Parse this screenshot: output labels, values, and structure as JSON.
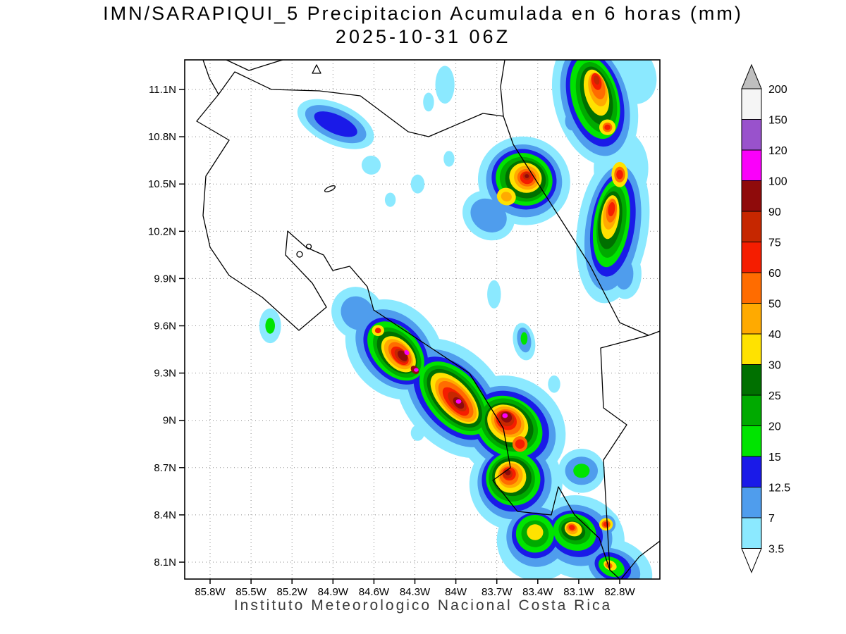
{
  "header": {
    "title": "IMN/SARAPIQUI_5 Precipitacion Acumulada en 6 horas (mm)",
    "subtitle": "2025-10-31 06Z"
  },
  "footer": {
    "credit": "Instituto Meteorologico Nacional Costa Rica"
  },
  "axes": {
    "x_ticks": [
      {
        "label": "85.8W",
        "lon": -85.8
      },
      {
        "label": "85.5W",
        "lon": -85.5
      },
      {
        "label": "85.2W",
        "lon": -85.2
      },
      {
        "label": "84.9W",
        "lon": -84.9
      },
      {
        "label": "84.6W",
        "lon": -84.6
      },
      {
        "label": "84.3W",
        "lon": -84.3
      },
      {
        "label": "84W",
        "lon": -84.0
      },
      {
        "label": "83.7W",
        "lon": -83.7
      },
      {
        "label": "83.4W",
        "lon": -83.4
      },
      {
        "label": "83.1W",
        "lon": -83.1
      },
      {
        "label": "82.8W",
        "lon": -82.8
      }
    ],
    "y_ticks": [
      {
        "label": "11.1N",
        "lat": 11.1
      },
      {
        "label": "10.8N",
        "lat": 10.8
      },
      {
        "label": "10.5N",
        "lat": 10.5
      },
      {
        "label": "10.2N",
        "lat": 10.2
      },
      {
        "label": "9.9N",
        "lat": 9.9
      },
      {
        "label": "9.6N",
        "lat": 9.6
      },
      {
        "label": "9.3N",
        "lat": 9.3
      },
      {
        "label": "9N",
        "lat": 9.0
      },
      {
        "label": "8.7N",
        "lat": 8.7
      },
      {
        "label": "8.4N",
        "lat": 8.4
      },
      {
        "label": "8.1N",
        "lat": 8.1
      }
    ]
  },
  "legend": {
    "labels_top_to_bottom": [
      "200",
      "150",
      "120",
      "100",
      "90",
      "75",
      "60",
      "50",
      "40",
      "30",
      "25",
      "20",
      "15",
      "12.5",
      "7",
      "3.5"
    ],
    "arrow_top_color": "#bfbfbf",
    "arrow_bottom_color": "#ffffff"
  },
  "chart_data": {
    "type": "heatmap",
    "title": "IMN/SARAPIQUI_5 Precipitacion Acumulada en 6 horas (mm)",
    "subtitle": "2025-10-31 06Z",
    "units": "mm",
    "lon_range": [
      -85.8,
      -82.8
    ],
    "lat_range": [
      8.1,
      11.1
    ],
    "grid": true,
    "legend_position": "right",
    "thresholds_mm": [
      3.5,
      7,
      12.5,
      15,
      20,
      25,
      30,
      40,
      50,
      60,
      75,
      90,
      100,
      120,
      150,
      200
    ],
    "palette": [
      {
        "mm": 3.5,
        "color": "#8be9ff"
      },
      {
        "mm": 7,
        "color": "#4f9ded"
      },
      {
        "mm": 12.5,
        "color": "#1a1ae8"
      },
      {
        "mm": 15,
        "color": "#00e400"
      },
      {
        "mm": 20,
        "color": "#00aa00"
      },
      {
        "mm": 25,
        "color": "#007000"
      },
      {
        "mm": 30,
        "color": "#ffe200"
      },
      {
        "mm": 40,
        "color": "#ffaa00"
      },
      {
        "mm": 50,
        "color": "#ff6c00"
      },
      {
        "mm": 60,
        "color": "#f51d00"
      },
      {
        "mm": 75,
        "color": "#c62700"
      },
      {
        "mm": 90,
        "color": "#8f0b0b"
      },
      {
        "mm": 100,
        "color": "#fa00fa"
      },
      {
        "mm": 120,
        "color": "#9952cc"
      },
      {
        "mm": 150,
        "color": "#f5f5f5"
      }
    ],
    "feature_format": [
      "lon",
      "lat",
      "rx_deg",
      "ry_deg",
      "rotation_deg",
      "palette_index"
    ],
    "features": [
      [
        -84.45,
        9.45,
        0.4,
        0.28,
        48,
        0
      ],
      [
        -84.02,
        9.14,
        0.5,
        0.3,
        48,
        0
      ],
      [
        -83.6,
        8.95,
        0.42,
        0.32,
        35,
        0
      ],
      [
        -83.56,
        8.6,
        0.34,
        0.3,
        25,
        0
      ],
      [
        -83.4,
        8.24,
        0.3,
        0.26,
        15,
        0
      ],
      [
        -84.72,
        9.68,
        0.2,
        0.16,
        48,
        0
      ],
      [
        -85.36,
        9.6,
        0.08,
        0.11,
        0,
        0
      ],
      [
        -84.76,
        9.62,
        0.05,
        0.06,
        0,
        0
      ],
      [
        -83.5,
        9.5,
        0.08,
        0.12,
        -10,
        0
      ],
      [
        -83.72,
        9.8,
        0.05,
        0.09,
        0,
        0
      ],
      [
        -83.28,
        9.23,
        0.045,
        0.055,
        0,
        0
      ],
      [
        -83.5,
        10.52,
        0.34,
        0.28,
        20,
        0
      ],
      [
        -83.76,
        10.3,
        0.2,
        0.15,
        35,
        0
      ],
      [
        -82.98,
        11.03,
        0.3,
        0.42,
        -15,
        0
      ],
      [
        -82.72,
        11.2,
        0.18,
        0.2,
        -25,
        0
      ],
      [
        -83.15,
        10.9,
        0.08,
        0.1,
        0,
        0
      ],
      [
        -82.85,
        10.22,
        0.26,
        0.48,
        8,
        0
      ],
      [
        -82.79,
        10.6,
        0.2,
        0.24,
        0,
        0
      ],
      [
        -82.76,
        9.93,
        0.12,
        0.16,
        0,
        0
      ],
      [
        -84.88,
        10.88,
        0.3,
        0.13,
        24,
        0
      ],
      [
        -84.62,
        10.62,
        0.07,
        0.06,
        24,
        0
      ],
      [
        -84.08,
        11.13,
        0.07,
        0.12,
        0,
        0
      ],
      [
        -84.2,
        11.02,
        0.04,
        0.06,
        0,
        0
      ],
      [
        -84.05,
        10.66,
        0.04,
        0.05,
        0,
        0
      ],
      [
        -84.28,
        10.5,
        0.05,
        0.06,
        0,
        0
      ],
      [
        -84.48,
        10.4,
        0.04,
        0.045,
        0,
        0
      ],
      [
        -83.1,
        8.26,
        0.34,
        0.26,
        20,
        0
      ],
      [
        -82.83,
        8.06,
        0.28,
        0.18,
        25,
        0
      ],
      [
        -83.08,
        8.68,
        0.17,
        0.14,
        0,
        0
      ],
      [
        -84.28,
        8.92,
        0.05,
        0.05,
        0,
        0
      ],
      [
        -82.9,
        8.34,
        0.1,
        0.09,
        0,
        0
      ],
      [
        -84.45,
        9.45,
        0.33,
        0.21,
        48,
        1
      ],
      [
        -84.02,
        9.14,
        0.42,
        0.23,
        48,
        1
      ],
      [
        -83.6,
        8.95,
        0.35,
        0.25,
        35,
        1
      ],
      [
        -83.57,
        8.61,
        0.27,
        0.24,
        25,
        1
      ],
      [
        -83.41,
        8.26,
        0.22,
        0.19,
        15,
        1
      ],
      [
        -84.72,
        9.68,
        0.13,
        0.1,
        48,
        1
      ],
      [
        -83.5,
        10.52,
        0.28,
        0.23,
        20,
        1
      ],
      [
        -83.76,
        10.3,
        0.14,
        0.1,
        35,
        1
      ],
      [
        -82.98,
        11.03,
        0.24,
        0.36,
        -15,
        1
      ],
      [
        -82.85,
        10.22,
        0.2,
        0.4,
        8,
        1
      ],
      [
        -84.88,
        10.88,
        0.24,
        0.095,
        24,
        1
      ],
      [
        -83.11,
        8.27,
        0.26,
        0.19,
        20,
        1
      ],
      [
        -82.84,
        8.06,
        0.2,
        0.12,
        25,
        1
      ],
      [
        -83.08,
        8.68,
        0.12,
        0.09,
        0,
        1
      ],
      [
        -82.77,
        9.93,
        0.07,
        0.1,
        0,
        1
      ],
      [
        -83.5,
        9.51,
        0.05,
        0.08,
        -10,
        1
      ],
      [
        -82.9,
        8.34,
        0.07,
        0.06,
        0,
        1
      ],
      [
        -83.15,
        10.9,
        0.05,
        0.06,
        0,
        1
      ],
      [
        -84.44,
        9.44,
        0.28,
        0.17,
        48,
        2
      ],
      [
        -84.02,
        9.14,
        0.36,
        0.19,
        48,
        2
      ],
      [
        -83.6,
        8.96,
        0.3,
        0.21,
        35,
        2
      ],
      [
        -83.58,
        8.62,
        0.23,
        0.2,
        25,
        2
      ],
      [
        -83.42,
        8.27,
        0.17,
        0.145,
        15,
        2
      ],
      [
        -83.5,
        10.53,
        0.24,
        0.19,
        20,
        2
      ],
      [
        -82.98,
        11.04,
        0.2,
        0.31,
        -15,
        2
      ],
      [
        -82.85,
        10.24,
        0.16,
        0.33,
        8,
        2
      ],
      [
        -84.88,
        10.88,
        0.17,
        0.06,
        24,
        2
      ],
      [
        -83.12,
        8.28,
        0.2,
        0.145,
        20,
        2
      ],
      [
        -82.85,
        8.07,
        0.14,
        0.085,
        25,
        2
      ],
      [
        -84.44,
        9.44,
        0.25,
        0.145,
        48,
        3
      ],
      [
        -84.01,
        9.14,
        0.32,
        0.165,
        48,
        3
      ],
      [
        -83.61,
        8.96,
        0.26,
        0.18,
        35,
        3
      ],
      [
        -83.58,
        8.63,
        0.2,
        0.17,
        25,
        3
      ],
      [
        -83.42,
        8.28,
        0.14,
        0.12,
        15,
        3
      ],
      [
        -83.5,
        10.53,
        0.21,
        0.165,
        20,
        3
      ],
      [
        -82.98,
        11.05,
        0.17,
        0.27,
        -15,
        3
      ],
      [
        -82.86,
        10.25,
        0.13,
        0.28,
        8,
        3
      ],
      [
        -83.13,
        8.29,
        0.16,
        0.115,
        20,
        3
      ],
      [
        -82.86,
        8.07,
        0.1,
        0.06,
        25,
        3
      ],
      [
        -85.36,
        9.6,
        0.035,
        0.05,
        0,
        3
      ],
      [
        -83.5,
        9.52,
        0.025,
        0.04,
        0,
        3
      ],
      [
        -83.08,
        8.68,
        0.06,
        0.045,
        0,
        3
      ],
      [
        -84.43,
        9.43,
        0.215,
        0.12,
        48,
        4
      ],
      [
        -84.01,
        9.14,
        0.29,
        0.14,
        48,
        4
      ],
      [
        -83.61,
        8.97,
        0.225,
        0.155,
        35,
        4
      ],
      [
        -83.59,
        8.63,
        0.17,
        0.145,
        25,
        4
      ],
      [
        -83.42,
        8.28,
        0.1,
        0.085,
        15,
        4
      ],
      [
        -83.5,
        10.53,
        0.18,
        0.14,
        20,
        4
      ],
      [
        -82.97,
        11.05,
        0.14,
        0.23,
        -15,
        4
      ],
      [
        -82.86,
        10.26,
        0.105,
        0.23,
        8,
        4
      ],
      [
        -83.13,
        8.3,
        0.12,
        0.085,
        20,
        4
      ],
      [
        -84.43,
        9.43,
        0.18,
        0.1,
        48,
        5
      ],
      [
        -84.01,
        9.14,
        0.26,
        0.12,
        48,
        5
      ],
      [
        -83.61,
        8.97,
        0.19,
        0.13,
        35,
        5
      ],
      [
        -83.59,
        8.64,
        0.145,
        0.12,
        25,
        5
      ],
      [
        -83.49,
        10.53,
        0.15,
        0.12,
        20,
        5
      ],
      [
        -82.97,
        11.06,
        0.11,
        0.19,
        -15,
        5
      ],
      [
        -82.87,
        10.27,
        0.085,
        0.185,
        8,
        5
      ],
      [
        -83.14,
        8.3,
        0.09,
        0.06,
        20,
        5
      ],
      [
        -84.42,
        9.42,
        0.155,
        0.085,
        48,
        6
      ],
      [
        -84.01,
        9.14,
        0.23,
        0.1,
        48,
        6
      ],
      [
        -83.62,
        8.98,
        0.16,
        0.11,
        35,
        6
      ],
      [
        -83.6,
        8.64,
        0.115,
        0.1,
        25,
        6
      ],
      [
        -83.42,
        8.29,
        0.06,
        0.05,
        15,
        6
      ],
      [
        -83.49,
        10.54,
        0.12,
        0.095,
        20,
        6
      ],
      [
        -83.63,
        10.42,
        0.07,
        0.055,
        20,
        6
      ],
      [
        -82.97,
        11.08,
        0.085,
        0.15,
        -15,
        6
      ],
      [
        -82.89,
        10.86,
        0.06,
        0.05,
        0,
        6
      ],
      [
        -82.87,
        10.29,
        0.065,
        0.14,
        8,
        6
      ],
      [
        -83.14,
        8.31,
        0.065,
        0.045,
        20,
        6
      ],
      [
        -82.87,
        8.08,
        0.05,
        0.03,
        25,
        6
      ],
      [
        -84.57,
        9.57,
        0.045,
        0.035,
        0,
        6
      ],
      [
        -82.8,
        10.56,
        0.06,
        0.08,
        0,
        6
      ],
      [
        -82.9,
        8.34,
        0.05,
        0.04,
        0,
        6
      ],
      [
        -84.42,
        9.42,
        0.13,
        0.07,
        48,
        7
      ],
      [
        -84.0,
        9.13,
        0.2,
        0.085,
        48,
        7
      ],
      [
        -83.62,
        8.99,
        0.13,
        0.09,
        35,
        7
      ],
      [
        -83.6,
        8.65,
        0.09,
        0.08,
        25,
        7
      ],
      [
        -83.48,
        10.54,
        0.095,
        0.075,
        20,
        7
      ],
      [
        -83.63,
        10.42,
        0.04,
        0.03,
        20,
        7
      ],
      [
        -82.96,
        11.1,
        0.065,
        0.11,
        -15,
        7
      ],
      [
        -82.87,
        10.31,
        0.05,
        0.1,
        8,
        7
      ],
      [
        -83.15,
        8.31,
        0.045,
        0.032,
        20,
        7
      ],
      [
        -84.41,
        9.42,
        0.105,
        0.055,
        48,
        8
      ],
      [
        -84.0,
        9.13,
        0.17,
        0.07,
        48,
        8
      ],
      [
        -83.62,
        8.99,
        0.105,
        0.075,
        35,
        8
      ],
      [
        -83.61,
        8.65,
        0.07,
        0.06,
        25,
        8
      ],
      [
        -83.53,
        8.85,
        0.055,
        0.05,
        0,
        8
      ],
      [
        -83.48,
        10.54,
        0.07,
        0.055,
        20,
        8
      ],
      [
        -82.96,
        11.12,
        0.05,
        0.085,
        -15,
        8
      ],
      [
        -82.89,
        10.86,
        0.035,
        0.03,
        0,
        8
      ],
      [
        -82.86,
        10.33,
        0.038,
        0.075,
        8,
        8
      ],
      [
        -82.8,
        10.56,
        0.04,
        0.05,
        0,
        8
      ],
      [
        -82.9,
        8.34,
        0.032,
        0.026,
        0,
        8
      ],
      [
        -83.15,
        8.32,
        0.035,
        0.025,
        20,
        8
      ],
      [
        -82.88,
        8.08,
        0.028,
        0.018,
        25,
        8
      ],
      [
        -84.41,
        9.41,
        0.08,
        0.042,
        48,
        9
      ],
      [
        -84.0,
        9.12,
        0.13,
        0.05,
        48,
        9
      ],
      [
        -83.63,
        9.0,
        0.08,
        0.058,
        35,
        9
      ],
      [
        -83.61,
        8.66,
        0.05,
        0.042,
        25,
        9
      ],
      [
        -83.53,
        8.85,
        0.035,
        0.03,
        0,
        9
      ],
      [
        -83.48,
        10.54,
        0.05,
        0.04,
        20,
        9
      ],
      [
        -82.97,
        11.15,
        0.035,
        0.055,
        -15,
        9
      ],
      [
        -82.89,
        10.86,
        0.022,
        0.018,
        0,
        9
      ],
      [
        -82.86,
        10.34,
        0.025,
        0.045,
        8,
        9
      ],
      [
        -82.8,
        10.56,
        0.025,
        0.03,
        0,
        9
      ],
      [
        -84.57,
        9.57,
        0.022,
        0.018,
        0,
        9
      ],
      [
        -83.15,
        8.32,
        0.022,
        0.016,
        20,
        9
      ],
      [
        -82.9,
        8.34,
        0.02,
        0.016,
        0,
        9
      ],
      [
        -84.4,
        9.41,
        0.06,
        0.032,
        48,
        10
      ],
      [
        -83.99,
        9.12,
        0.09,
        0.038,
        48,
        10
      ],
      [
        -83.63,
        9.01,
        0.06,
        0.045,
        35,
        10
      ],
      [
        -83.62,
        8.66,
        0.035,
        0.03,
        25,
        10
      ],
      [
        -83.48,
        10.55,
        0.03,
        0.025,
        20,
        10
      ],
      [
        -82.97,
        11.16,
        0.02,
        0.03,
        -15,
        10
      ],
      [
        -84.39,
        9.41,
        0.045,
        0.025,
        48,
        11
      ],
      [
        -84.3,
        9.32,
        0.035,
        0.022,
        48,
        11
      ],
      [
        -83.98,
        9.11,
        0.05,
        0.026,
        48,
        11
      ],
      [
        -83.63,
        9.02,
        0.042,
        0.032,
        35,
        11
      ],
      [
        -83.62,
        8.67,
        0.022,
        0.018,
        25,
        11
      ],
      [
        -83.48,
        10.55,
        0.016,
        0.013,
        20,
        11
      ],
      [
        -84.36,
        9.43,
        0.02,
        0.014,
        48,
        12
      ],
      [
        -84.29,
        9.32,
        0.017,
        0.012,
        0,
        12
      ],
      [
        -83.98,
        9.12,
        0.02,
        0.014,
        0,
        12
      ],
      [
        -83.64,
        9.03,
        0.02,
        0.015,
        0,
        12
      ]
    ]
  }
}
